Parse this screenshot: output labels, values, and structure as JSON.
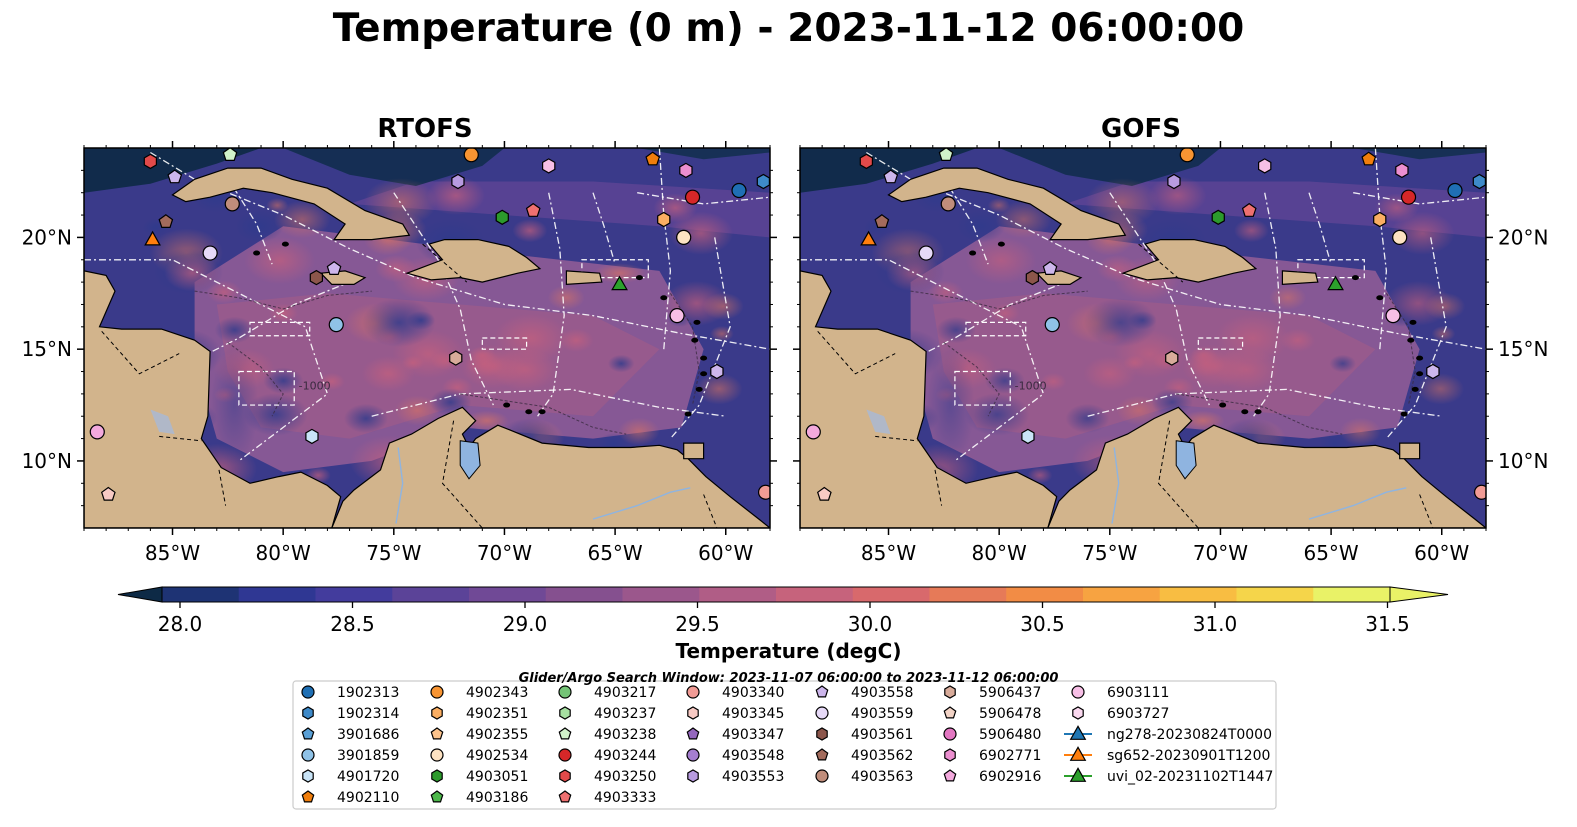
{
  "figure": {
    "title": "Temperature (0 m) - 2023-11-12 06:00:00",
    "search_window": "Glider/Argo Search Window: 2023-11-07 06:00:00 to 2023-11-12 06:00:00"
  },
  "panels": [
    {
      "title": "RTOFS"
    },
    {
      "title": "GOFS"
    }
  ],
  "map": {
    "lon_range": [
      -89,
      -58
    ],
    "lat_range": [
      7,
      24
    ],
    "lon_ticks": [
      "85°W",
      "80°W",
      "75°W",
      "70°W",
      "65°W",
      "60°W"
    ],
    "lat_ticks": [
      "20°N",
      "15°N",
      "10°N"
    ],
    "contour_label": "-1000",
    "colors": {
      "land": "#d2b48c",
      "ocean_mid": "#8a5a96",
      "ocean_deep": "#3a3a8a",
      "lake": "#8fb4e0"
    }
  },
  "colorbar": {
    "label": "Temperature (degC)",
    "ticks": [
      "28.0",
      "28.5",
      "29.0",
      "29.5",
      "30.0",
      "30.5",
      "31.0",
      "31.5"
    ],
    "min": 28.0,
    "max": 31.5,
    "step": 0.25,
    "colors": [
      "#0d2a46",
      "#1e3374",
      "#2f3793",
      "#433c9d",
      "#5b4398",
      "#704996",
      "#85508f",
      "#9b578c",
      "#b05d86",
      "#c6637c",
      "#d8696c",
      "#e67a58",
      "#f28c45",
      "#f7a341",
      "#f8bd42",
      "#f5d54a",
      "#e9f267"
    ]
  },
  "legend": {
    "columns": [
      [
        {
          "label": "1902313",
          "marker": "circle",
          "color": "#1f6fb4"
        },
        {
          "label": "1902314",
          "marker": "hexagon",
          "color": "#3e8ac9"
        },
        {
          "label": "3901686",
          "marker": "pentagon",
          "color": "#5aa0d6"
        },
        {
          "label": "3901859",
          "marker": "circle",
          "color": "#8fc2e7"
        },
        {
          "label": "4901720",
          "marker": "hexagon",
          "color": "#c9e4f7"
        },
        {
          "label": "4902110",
          "marker": "pentagon",
          "color": "#f07e0c"
        }
      ],
      [
        {
          "label": "4902343",
          "marker": "circle",
          "color": "#f79432"
        },
        {
          "label": "4902351",
          "marker": "hexagon",
          "color": "#fbae62"
        },
        {
          "label": "4902355",
          "marker": "pentagon",
          "color": "#fdc48d"
        },
        {
          "label": "4902534",
          "marker": "circle",
          "color": "#fde2c2"
        },
        {
          "label": "4903051",
          "marker": "hexagon",
          "color": "#2c9a2c"
        },
        {
          "label": "4903186",
          "marker": "pentagon",
          "color": "#4cb74a"
        }
      ],
      [
        {
          "label": "4903217",
          "marker": "circle",
          "color": "#74c476"
        },
        {
          "label": "4903237",
          "marker": "hexagon",
          "color": "#a6dfa1"
        },
        {
          "label": "4903238",
          "marker": "pentagon",
          "color": "#d1f2c9"
        },
        {
          "label": "4903244",
          "marker": "circle",
          "color": "#d62728"
        },
        {
          "label": "4903250",
          "marker": "hexagon",
          "color": "#e24a4a"
        },
        {
          "label": "4903333",
          "marker": "pentagon",
          "color": "#ef7070"
        }
      ],
      [
        {
          "label": "4903340",
          "marker": "circle",
          "color": "#f19b95"
        },
        {
          "label": "4903345",
          "marker": "hexagon",
          "color": "#f8cac4"
        },
        {
          "label": "4903347",
          "marker": "pentagon",
          "color": "#9467bd"
        },
        {
          "label": "4903548",
          "marker": "circle",
          "color": "#a57ed0"
        },
        {
          "label": "4903553",
          "marker": "hexagon",
          "color": "#b89be0"
        }
      ],
      [
        {
          "label": "4903558",
          "marker": "pentagon",
          "color": "#cdb6ec"
        },
        {
          "label": "4903559",
          "marker": "circle",
          "color": "#e6d9f7"
        },
        {
          "label": "4903561",
          "marker": "hexagon",
          "color": "#8c564b"
        },
        {
          "label": "4903562",
          "marker": "pentagon",
          "color": "#a36b5c"
        },
        {
          "label": "4903563",
          "marker": "circle",
          "color": "#c08d7b"
        }
      ],
      [
        {
          "label": "5906437",
          "marker": "hexagon",
          "color": "#d8ab9a"
        },
        {
          "label": "5906478",
          "marker": "pentagon",
          "color": "#f2d3c6"
        },
        {
          "label": "5906480",
          "marker": "circle",
          "color": "#e377c2"
        },
        {
          "label": "6902771",
          "marker": "hexagon",
          "color": "#ec8fd0"
        },
        {
          "label": "6902916",
          "marker": "pentagon",
          "color": "#f3a9dd"
        }
      ],
      [
        {
          "label": "6903111",
          "marker": "circle",
          "color": "#f7bfe6"
        },
        {
          "label": "6903727",
          "marker": "hexagon",
          "color": "#fbd9f0"
        },
        {
          "label": "ng278-20230824T0000",
          "marker": "triangle",
          "color": "#1f77b4"
        },
        {
          "label": "sg652-20230901T1200",
          "marker": "triangle",
          "color": "#ff7f0e"
        },
        {
          "label": "uvi_02-20231102T1447",
          "marker": "triangle",
          "color": "#2ca02c"
        }
      ]
    ]
  },
  "markers": [
    {
      "lon": -82.4,
      "lat": 23.7,
      "marker": "pentagon",
      "color": "#d1f2c9"
    },
    {
      "lon": -86.0,
      "lat": 23.4,
      "marker": "hexagon",
      "color": "#e24a4a"
    },
    {
      "lon": -71.5,
      "lat": 23.7,
      "marker": "circle",
      "color": "#f79432"
    },
    {
      "lon": -63.3,
      "lat": 23.5,
      "marker": "pentagon",
      "color": "#f07e0c"
    },
    {
      "lon": -61.8,
      "lat": 23.0,
      "marker": "hexagon",
      "color": "#ec8fd0"
    },
    {
      "lon": -84.9,
      "lat": 22.7,
      "marker": "pentagon",
      "color": "#cdb6ec"
    },
    {
      "lon": -68.0,
      "lat": 23.2,
      "marker": "hexagon",
      "color": "#f7bfe6"
    },
    {
      "lon": -72.1,
      "lat": 22.5,
      "marker": "hexagon",
      "color": "#b89be0"
    },
    {
      "lon": -59.4,
      "lat": 22.1,
      "marker": "circle",
      "color": "#1f6fb4"
    },
    {
      "lon": -58.3,
      "lat": 22.5,
      "marker": "hexagon",
      "color": "#3e8ac9"
    },
    {
      "lon": -61.5,
      "lat": 21.8,
      "marker": "circle",
      "color": "#d62728"
    },
    {
      "lon": -82.3,
      "lat": 21.5,
      "marker": "circle",
      "color": "#c08d7b"
    },
    {
      "lon": -68.7,
      "lat": 21.2,
      "marker": "pentagon",
      "color": "#ef7070"
    },
    {
      "lon": -70.1,
      "lat": 20.9,
      "marker": "hexagon",
      "color": "#2c9a2c"
    },
    {
      "lon": -62.8,
      "lat": 20.8,
      "marker": "hexagon",
      "color": "#fbae62"
    },
    {
      "lon": -85.3,
      "lat": 20.7,
      "marker": "pentagon",
      "color": "#a36b5c"
    },
    {
      "lon": -85.9,
      "lat": 19.9,
      "marker": "triangle",
      "color": "#ff7f0e"
    },
    {
      "lon": -61.9,
      "lat": 20.0,
      "marker": "circle",
      "color": "#fde2c2"
    },
    {
      "lon": -83.3,
      "lat": 19.3,
      "marker": "circle",
      "color": "#e6d9f7"
    },
    {
      "lon": -77.7,
      "lat": 18.6,
      "marker": "pentagon",
      "color": "#cdb6ec"
    },
    {
      "lon": -78.5,
      "lat": 18.2,
      "marker": "hexagon",
      "color": "#8c564b"
    },
    {
      "lon": -64.8,
      "lat": 17.9,
      "marker": "triangle",
      "color": "#2ca02c"
    },
    {
      "lon": -62.2,
      "lat": 16.5,
      "marker": "circle",
      "color": "#f7bfe6"
    },
    {
      "lon": -77.6,
      "lat": 16.1,
      "marker": "circle",
      "color": "#8fc2e7"
    },
    {
      "lon": -72.2,
      "lat": 14.6,
      "marker": "hexagon",
      "color": "#d8ab9a"
    },
    {
      "lon": -60.4,
      "lat": 14.0,
      "marker": "hexagon",
      "color": "#cdb6ec"
    },
    {
      "lon": -88.4,
      "lat": 11.3,
      "marker": "circle",
      "color": "#f3a9dd"
    },
    {
      "lon": -78.7,
      "lat": 11.1,
      "marker": "hexagon",
      "color": "#c9e4f7"
    },
    {
      "lon": -87.9,
      "lat": 8.5,
      "marker": "pentagon",
      "color": "#f8cac4"
    },
    {
      "lon": -58.2,
      "lat": 8.6,
      "marker": "circle",
      "color": "#f19b95"
    }
  ]
}
